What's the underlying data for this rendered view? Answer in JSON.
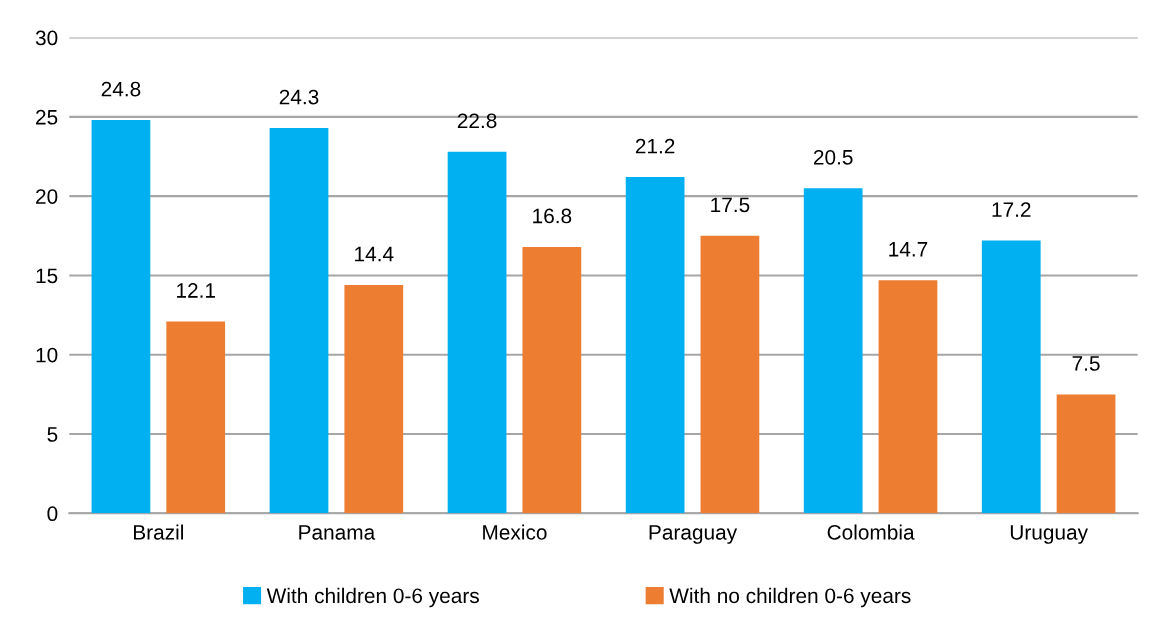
{
  "chart_data": {
    "type": "bar",
    "categories": [
      "Brazil",
      "Panama",
      "Mexico",
      "Paraguay",
      "Colombia",
      "Uruguay"
    ],
    "series": [
      {
        "name": "With children 0-6 years",
        "color": "#00b0f0",
        "values": [
          24.8,
          24.3,
          22.8,
          21.2,
          20.5,
          17.2
        ]
      },
      {
        "name": "With no children 0-6 years",
        "color": "#ed7d31",
        "values": [
          12.1,
          14.4,
          16.8,
          17.5,
          14.7,
          7.5
        ]
      }
    ],
    "ylim": [
      0,
      30
    ],
    "yticks": [
      0,
      5,
      10,
      15,
      20,
      25,
      30
    ],
    "grid": "y",
    "legend": "bottom",
    "data_labels": true
  }
}
